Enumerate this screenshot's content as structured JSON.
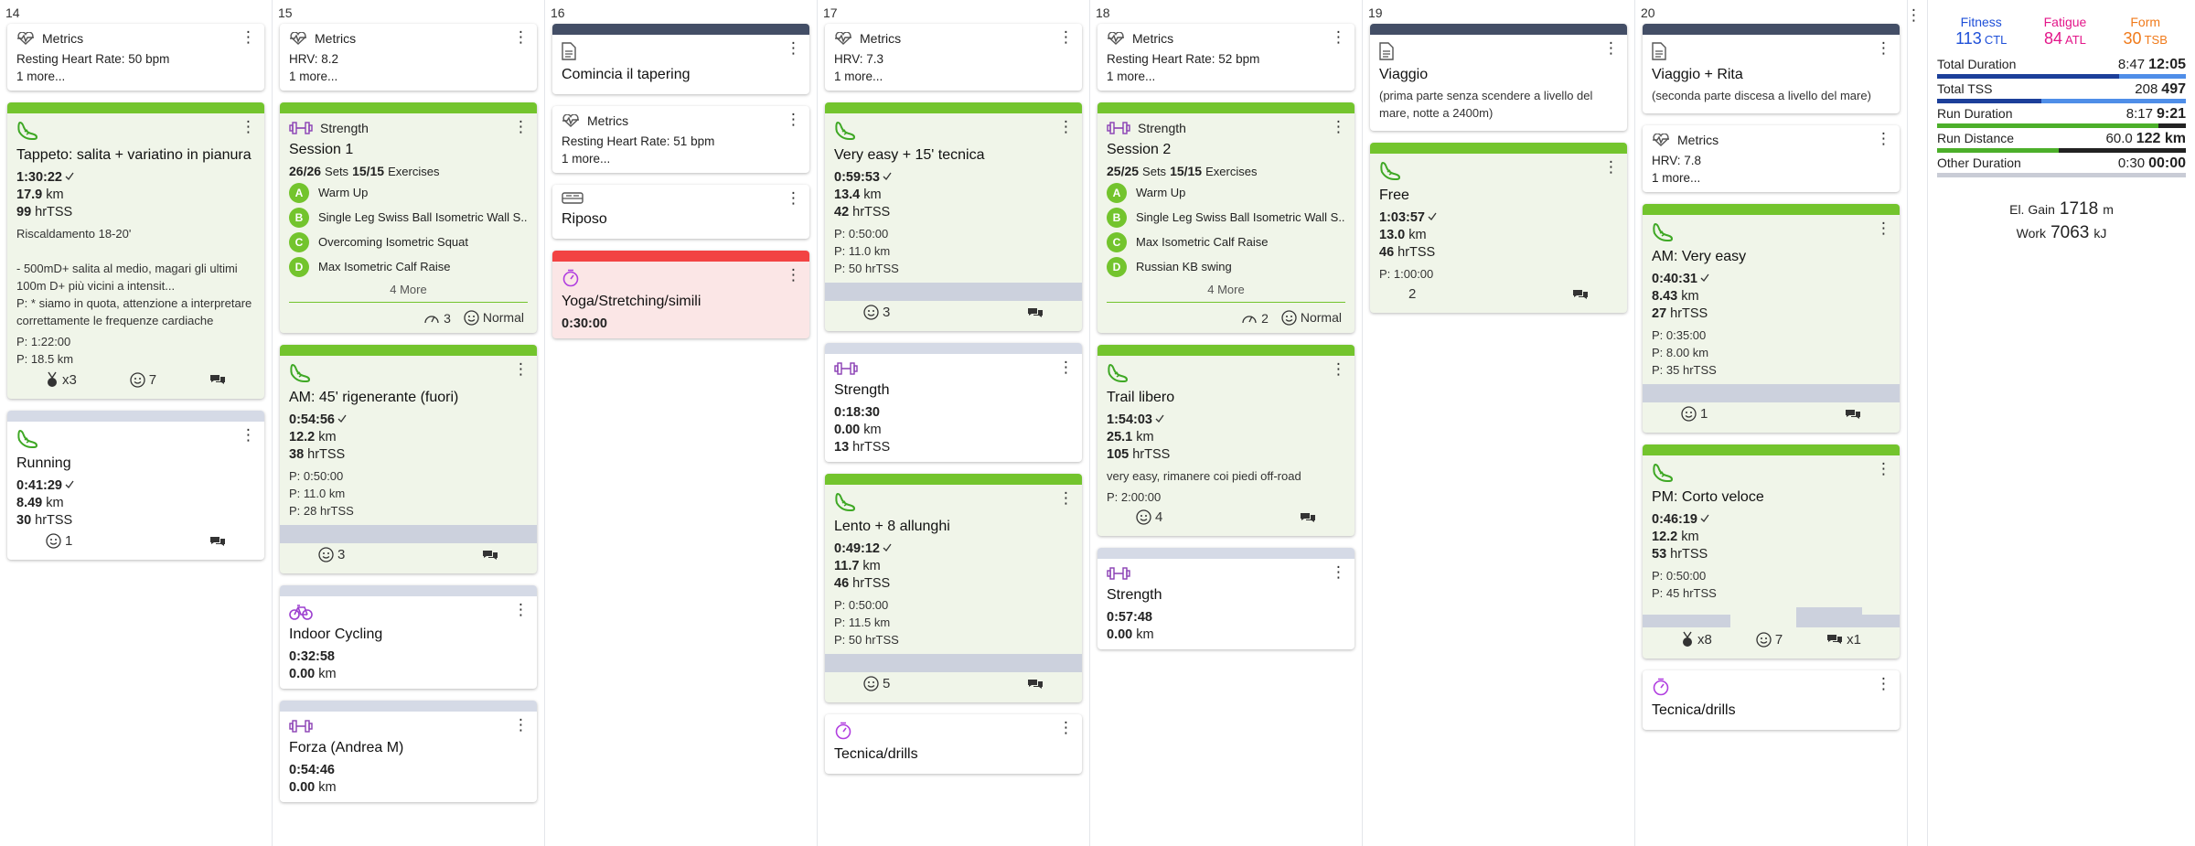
{
  "days": [
    {
      "num": "14",
      "cards": [
        {
          "kind": "metrics",
          "label": "Metrics",
          "lines": [
            "Resting Heart Rate: 50 bpm",
            "1 more..."
          ]
        },
        {
          "kind": "run",
          "band": "green",
          "bg": "green",
          "title": "Tappeto: salita + variatino in pianura",
          "dur": "1:30:22",
          "km": "17.9",
          "tss": "99",
          "desc": [
            "Riscaldamento 18-20'",
            "",
            "- 500mD+ salita al medio, magari gli ultimi 100m D+ più vicini a intensit...",
            "P: * siamo in quota, attenzione a interpretare correttamente le frequenze cardiache"
          ],
          "plan": [
            "P: 1:22:00",
            "P: 18.5 km"
          ],
          "footer": {
            "medal": "x3",
            "smile": "7",
            "comment": ""
          }
        },
        {
          "kind": "run",
          "band": "gray",
          "bg": "white",
          "title": "Running",
          "dur": "0:41:29",
          "km": "8.49",
          "tss": "30",
          "footer": {
            "smile": "1",
            "comment": ""
          }
        }
      ]
    },
    {
      "num": "15",
      "cards": [
        {
          "kind": "metrics",
          "label": "Metrics",
          "lines": [
            "HRV: 8.2",
            "1 more..."
          ]
        },
        {
          "kind": "strength",
          "band": "green",
          "bg": "green",
          "type": "Strength",
          "title": "Session 1",
          "sets": "26/26",
          "sets_l": "Sets",
          "ex": "15/15",
          "ex_l": "Exercises",
          "items": [
            {
              "b": "A",
              "t": "Warm Up"
            },
            {
              "b": "B",
              "t": "Single Leg Swiss Ball Isometric Wall S..."
            },
            {
              "b": "C",
              "t": "Overcoming Isometric Squat"
            },
            {
              "b": "D",
              "t": "Max Isometric Calf Raise"
            }
          ],
          "more": "4 More",
          "rpe": "3",
          "feel": "Normal"
        },
        {
          "kind": "run",
          "band": "green",
          "bg": "green",
          "title": "AM: 45' rigenerante (fuori)",
          "dur": "0:54:56",
          "km": "12.2",
          "tss": "38",
          "plan": [
            "P: 0:50:00",
            "P: 11.0 km",
            "P: 28 hrTSS"
          ],
          "prog": true,
          "footer": {
            "smile": "3",
            "comment": ""
          }
        },
        {
          "kind": "bike",
          "band": "gray",
          "bg": "white",
          "title": "Indoor Cycling",
          "dur": "0:32:58",
          "km": "0.00"
        },
        {
          "kind": "dumbbell",
          "band": "gray",
          "bg": "white",
          "title": "Forza (Andrea M)",
          "dur": "0:54:46",
          "km": "0.00"
        }
      ]
    },
    {
      "num": "16",
      "cards": [
        {
          "kind": "note",
          "band": "navy",
          "title": "Comincia il tapering"
        },
        {
          "kind": "metrics",
          "label": "Metrics",
          "lines": [
            "Resting Heart Rate: 51 bpm",
            "1 more..."
          ]
        },
        {
          "kind": "rest",
          "title": "Riposo"
        },
        {
          "kind": "yoga",
          "band": "red",
          "bg": "red",
          "title": "Yoga/Stretching/simili",
          "dur": "0:30:00"
        }
      ]
    },
    {
      "num": "17",
      "cards": [
        {
          "kind": "metrics",
          "label": "Metrics",
          "lines": [
            "HRV: 7.3",
            "1 more..."
          ]
        },
        {
          "kind": "run",
          "band": "green",
          "bg": "green",
          "title": "Very easy + 15' tecnica",
          "dur": "0:59:53",
          "km": "13.4",
          "tss": "42",
          "plan": [
            "P: 0:50:00",
            "P: 11.0 km",
            "P: 50 hrTSS"
          ],
          "prog": true,
          "footer": {
            "smile": "3",
            "comment": ""
          }
        },
        {
          "kind": "dumbbell",
          "band": "gray",
          "bg": "white",
          "title": "Strength",
          "dur": "0:18:30",
          "km": "0.00",
          "tss": "13"
        },
        {
          "kind": "run",
          "band": "green",
          "bg": "green",
          "title": "Lento + 8 allunghi",
          "dur": "0:49:12",
          "km": "11.7",
          "tss": "46",
          "plan": [
            "P: 0:50:00",
            "P: 11.5 km",
            "P: 50 hrTSS"
          ],
          "prog": true,
          "footer": {
            "smile": "5",
            "comment": ""
          }
        },
        {
          "kind": "yoga",
          "bg": "white",
          "title": "Tecnica/drills"
        }
      ]
    },
    {
      "num": "18",
      "cards": [
        {
          "kind": "metrics",
          "label": "Metrics",
          "lines": [
            "Resting Heart Rate: 52 bpm",
            "1 more..."
          ]
        },
        {
          "kind": "strength",
          "band": "green",
          "bg": "green",
          "type": "Strength",
          "title": "Session 2",
          "sets": "25/25",
          "sets_l": "Sets",
          "ex": "15/15",
          "ex_l": "Exercises",
          "items": [
            {
              "b": "A",
              "t": "Warm Up"
            },
            {
              "b": "B",
              "t": "Single Leg Swiss Ball Isometric Wall S..."
            },
            {
              "b": "C",
              "t": "Max Isometric Calf Raise"
            },
            {
              "b": "D",
              "t": "Russian KB swing"
            }
          ],
          "more": "4 More",
          "rpe": "2",
          "feel": "Normal"
        },
        {
          "kind": "run",
          "band": "green",
          "bg": "green",
          "title": "Trail libero",
          "dur": "1:54:03",
          "km": "25.1",
          "tss": "105",
          "desc": [
            "very easy, rimanere coi piedi off-road"
          ],
          "plan": [
            "P: 2:00:00"
          ],
          "footer": {
            "smile": "4",
            "comment": ""
          }
        },
        {
          "kind": "dumbbell",
          "band": "gray",
          "bg": "white",
          "title": "Strength",
          "dur": "0:57:48",
          "km": "0.00"
        }
      ]
    },
    {
      "num": "19",
      "cards": [
        {
          "kind": "note",
          "band": "navy",
          "title": "Viaggio",
          "sub": "(prima parte senza scendere a livello del mare, notte a 2400m)"
        },
        {
          "kind": "run",
          "band": "green",
          "bg": "green",
          "title": "Free",
          "dur": "1:03:57",
          "km": "13.0",
          "tss": "46",
          "plan": [
            "P: 1:00:00"
          ],
          "footer": {
            "num": "2",
            "comment": ""
          }
        }
      ]
    },
    {
      "num": "20",
      "cards": [
        {
          "kind": "note",
          "band": "navy",
          "title": "Viaggio + Rita",
          "sub": "(seconda parte discesa a livello del mare)"
        },
        {
          "kind": "metrics",
          "label": "Metrics",
          "lines": [
            "HRV: 7.8",
            "1 more..."
          ]
        },
        {
          "kind": "run",
          "band": "green",
          "bg": "green",
          "title": "AM: Very easy",
          "dur": "0:40:31",
          "km": "8.43",
          "tss": "27",
          "plan": [
            "P: 0:35:00",
            "P: 8.00 km",
            "P: 35 hrTSS"
          ],
          "prog": true,
          "footer": {
            "smile": "1",
            "comment": ""
          }
        },
        {
          "kind": "run",
          "band": "green",
          "bg": "green",
          "title": "PM: Corto veloce",
          "dur": "0:46:19",
          "km": "12.2",
          "tss": "53",
          "plan": [
            "P: 0:50:00",
            "P: 45 hrTSS"
          ],
          "progsteps": true,
          "footer": {
            "medal": "x8",
            "smile": "7",
            "comment": "x1"
          }
        },
        {
          "kind": "yoga",
          "bg": "white",
          "title": "Tecnica/drills"
        }
      ]
    }
  ],
  "units": {
    "km": "km",
    "tss": "hrTSS"
  },
  "summary": {
    "fitness": {
      "label": "Fitness",
      "value": "113",
      "unit": "CTL",
      "color": "#1e4fd8"
    },
    "fatigue": {
      "label": "Fatigue",
      "value": "84",
      "unit": "ATL",
      "color": "#e3178a"
    },
    "form": {
      "label": "Form",
      "value": "30",
      "unit": "TSB",
      "color": "#f07a1a"
    },
    "rows": [
      {
        "label": "Total Duration",
        "a": "8:47",
        "b": "12:05",
        "fill": 0.73,
        "c1": "#1c3f9a",
        "c2": "#4f8ee8"
      },
      {
        "label": "Total TSS",
        "a": "208",
        "b": "497",
        "fill": 0.42,
        "c1": "#1c3f9a",
        "c2": "#4f8ee8"
      },
      {
        "label": "Run Duration",
        "a": "8:17",
        "b": "9:21",
        "fill": 0.89,
        "c1": "#4caf2a",
        "c2": "#222"
      },
      {
        "label": "Run Distance",
        "a": "60.0",
        "b": "122 km",
        "fill": 0.49,
        "c1": "#4caf2a",
        "c2": "#222"
      },
      {
        "label": "Other Duration",
        "a": "0:30",
        "b": "00:00",
        "fill": 1.0,
        "c1": "#c9ccd6",
        "c2": "#c9ccd6"
      }
    ],
    "elgain": {
      "label": "El. Gain",
      "value": "1718",
      "unit": "m"
    },
    "work": {
      "label": "Work",
      "value": "7063",
      "unit": "kJ"
    }
  }
}
